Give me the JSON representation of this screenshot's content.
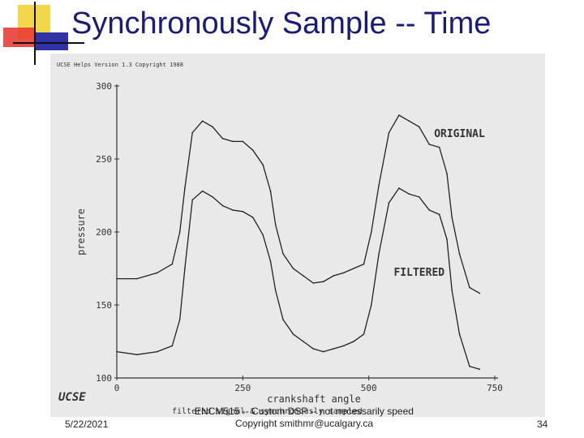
{
  "slide": {
    "title": "Synchronously Sample -- Time",
    "date": "5/22/2021",
    "footer_line1": "ENCM515 -- Custom DSP -- not necessarily speed",
    "footer_line2": "Copyright smithmr@ucalgary.ca",
    "page_number": "34"
  },
  "scan": {
    "header": "UCSE Helps Version 1.3 Copyright 1988",
    "logo_text": "UCSE",
    "caption": "filtered signal & synchronously sampled"
  },
  "chart_data": {
    "type": "line",
    "title": "",
    "xlabel": "crankshaft angle",
    "ylabel": "pressure",
    "xlim": [
      0,
      750
    ],
    "ylim": [
      100,
      300
    ],
    "xticks": [
      "0",
      "250",
      "500",
      "750"
    ],
    "yticks": [
      "100",
      "150",
      "200",
      "250",
      "300"
    ],
    "grid": false,
    "series": [
      {
        "name": "ORIGINAL",
        "x": [
          0,
          40,
          80,
          110,
          125,
          135,
          150,
          170,
          190,
          210,
          230,
          250,
          270,
          290,
          305,
          315,
          330,
          350,
          370,
          390,
          410,
          430,
          450,
          470,
          490,
          505,
          520,
          540,
          560,
          580,
          600,
          620,
          640,
          655,
          665,
          680,
          700,
          720
        ],
        "y": [
          168,
          168,
          172,
          178,
          200,
          230,
          268,
          276,
          272,
          264,
          262,
          262,
          256,
          246,
          228,
          205,
          185,
          175,
          170,
          165,
          166,
          170,
          172,
          175,
          178,
          200,
          232,
          268,
          280,
          276,
          272,
          260,
          258,
          240,
          210,
          185,
          162,
          158
        ]
      },
      {
        "name": "FILTERED",
        "x": [
          0,
          40,
          80,
          110,
          125,
          135,
          150,
          170,
          190,
          210,
          230,
          250,
          270,
          290,
          305,
          315,
          330,
          350,
          370,
          390,
          410,
          430,
          450,
          470,
          490,
          505,
          520,
          540,
          560,
          580,
          600,
          620,
          640,
          655,
          665,
          680,
          700,
          720
        ],
        "y": [
          118,
          116,
          118,
          122,
          140,
          175,
          222,
          228,
          224,
          218,
          215,
          214,
          210,
          198,
          180,
          160,
          140,
          130,
          125,
          120,
          118,
          120,
          122,
          125,
          130,
          150,
          185,
          220,
          230,
          226,
          224,
          215,
          212,
          195,
          160,
          130,
          108,
          106
        ]
      }
    ]
  }
}
